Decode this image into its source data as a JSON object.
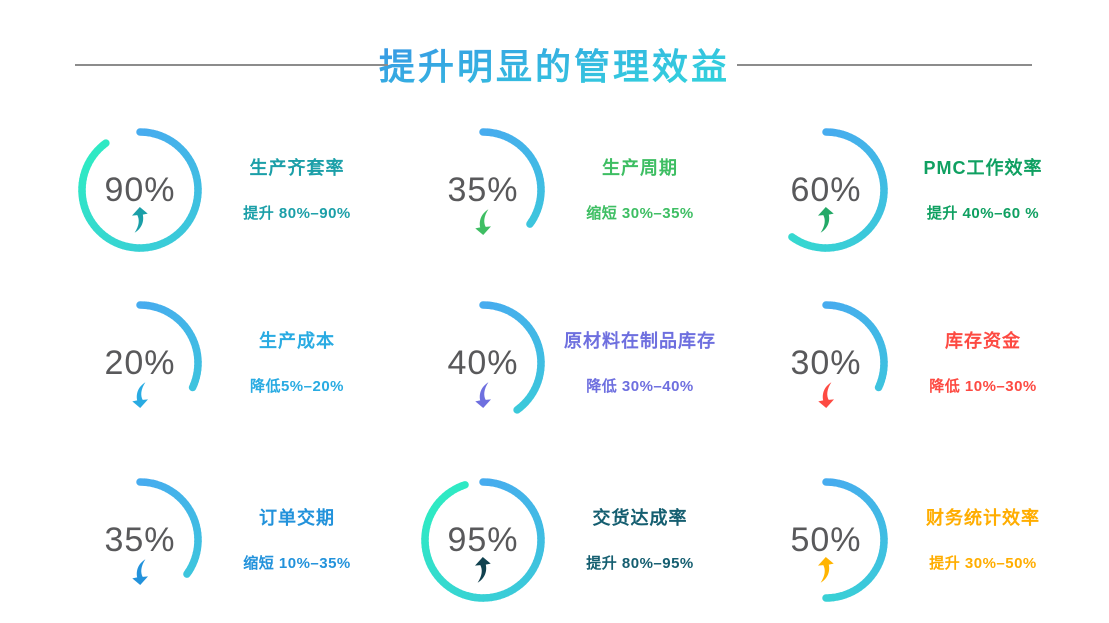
{
  "header": {
    "title": "提升明显的管理效益",
    "divider_color": "#8C8C8C"
  },
  "theme": {
    "background": "#FFFFFF",
    "ring_gradient_start": "#47ABEF",
    "ring_gradient_end": "#2FE9C4",
    "percent_color": "#59595B",
    "title_gradient_start": "#3B78E8",
    "title_gradient_end": "#34EBD2"
  },
  "items": [
    {
      "pct": "90%",
      "value": 90,
      "direction": "up",
      "color": "#1B9FA8",
      "arrow_color": "#1B9FA8",
      "title": "生产齐套率",
      "subtitle": "提升 80%–90%"
    },
    {
      "pct": "35%",
      "value": 35,
      "direction": "down",
      "color": "#3EBE63",
      "arrow_color": "#3EBE63",
      "title": "生产周期",
      "subtitle": "缩短 30%–35%"
    },
    {
      "pct": "60%",
      "value": 60,
      "direction": "up",
      "color": "#0FA061",
      "arrow_color": "#23A967",
      "title": "PMC工作效率",
      "subtitle": "提升 40%–60 %"
    },
    {
      "pct": "20%",
      "value": 20,
      "direction": "down",
      "color": "#29ABE2",
      "arrow_color": "#29ABE2",
      "title": "生产成本",
      "subtitle": "降低5%–20%"
    },
    {
      "pct": "40%",
      "value": 40,
      "direction": "down",
      "color": "#6E6FDF",
      "arrow_color": "#6E6FDF",
      "title": "原材料在制品库存",
      "subtitle": "降低 30%–40%"
    },
    {
      "pct": "30%",
      "value": 30,
      "direction": "down",
      "color": "#FD4A42",
      "arrow_color": "#FD4A42",
      "title": "库存资金",
      "subtitle": "降低 10%–30%"
    },
    {
      "pct": "35%",
      "value": 35,
      "direction": "down",
      "color": "#2292DB",
      "arrow_color": "#2292DB",
      "title": "订单交期",
      "subtitle": "缩短 10%–35%"
    },
    {
      "pct": "95%",
      "value": 95,
      "direction": "up",
      "color": "#155E70",
      "arrow_color": "#11414F",
      "title": "交货达成率",
      "subtitle": "提升 80%–95%"
    },
    {
      "pct": "50%",
      "value": 50,
      "direction": "up",
      "color": "#FFAD00",
      "arrow_color": "#FFB400",
      "title": "财务统计效率",
      "subtitle": "提升 30%–50%"
    }
  ],
  "chart_data": {
    "type": "pie",
    "subtype": "gauge-grid",
    "title": "提升明显的管理效益",
    "layout": "3x3-grid, each gauge: arc starts at 12 o'clock clockwise, sweep ~ value%, blue-to-cyan gradient stroke",
    "gauges": [
      {
        "label": "生产齐套率",
        "value_pct": 90,
        "change": "提升 80%–90%",
        "trend": "up"
      },
      {
        "label": "生产周期",
        "value_pct": 35,
        "change": "缩短 30%–35%",
        "trend": "down"
      },
      {
        "label": "PMC工作效率",
        "value_pct": 60,
        "change": "提升 40%–60 %",
        "trend": "up"
      },
      {
        "label": "生产成本",
        "value_pct": 20,
        "change": "降低5%–20%",
        "trend": "down"
      },
      {
        "label": "原材料在制品库存",
        "value_pct": 40,
        "change": "降低 30%–40%",
        "trend": "down"
      },
      {
        "label": "库存资金",
        "value_pct": 30,
        "change": "降低 10%–30%",
        "trend": "down"
      },
      {
        "label": "订单交期",
        "value_pct": 35,
        "change": "缩短 10%–35%",
        "trend": "down"
      },
      {
        "label": "交货达成率",
        "value_pct": 95,
        "change": "提升 80%–95%",
        "trend": "up"
      },
      {
        "label": "财务统计效率",
        "value_pct": 50,
        "change": "提升 30%–50%",
        "trend": "up"
      }
    ]
  }
}
